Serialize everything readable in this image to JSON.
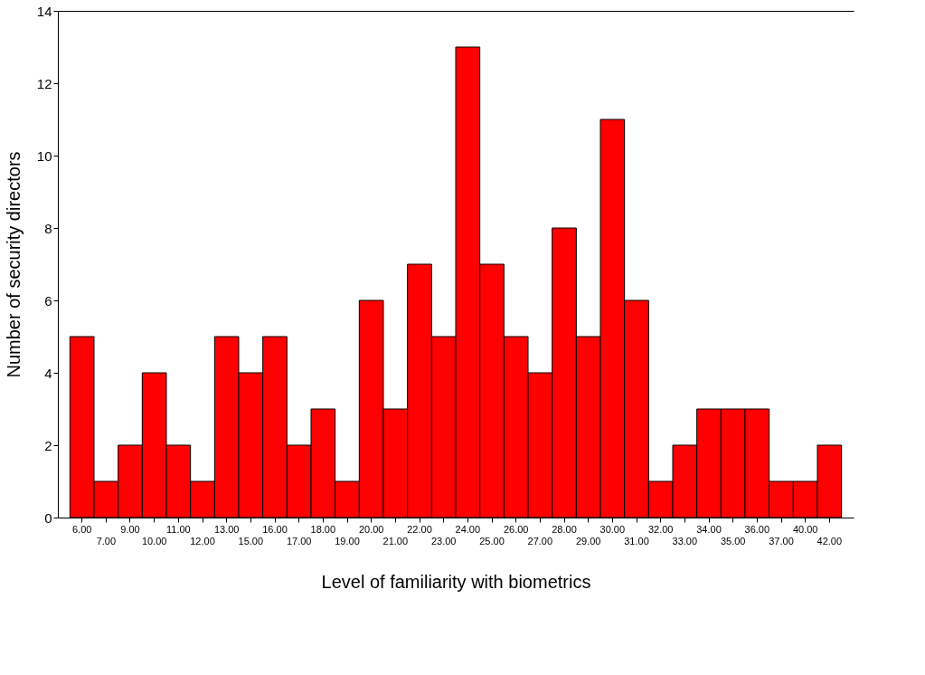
{
  "chart_data": {
    "type": "bar",
    "xlabel": "Level of familiarity with biometrics",
    "ylabel": "Number of security directors",
    "categories": [
      "6.00",
      "7.00",
      "9.00",
      "10.00",
      "11.00",
      "12.00",
      "13.00",
      "15.00",
      "16.00",
      "17.00",
      "18.00",
      "19.00",
      "20.00",
      "21.00",
      "22.00",
      "23.00",
      "24.00",
      "25.00",
      "26.00",
      "27.00",
      "28.00",
      "29.00",
      "30.00",
      "31.00",
      "32.00",
      "33.00",
      "34.00",
      "35.00",
      "36.00",
      "37.00",
      "40.00",
      "42.00"
    ],
    "values": [
      5,
      1,
      2,
      4,
      2,
      1,
      5,
      4,
      5,
      2,
      3,
      1,
      6,
      3,
      7,
      5,
      13,
      7,
      5,
      4,
      8,
      5,
      11,
      6,
      1,
      2,
      3,
      3,
      3,
      1,
      1,
      2
    ],
    "color": "#ff0000",
    "ylim": [
      0,
      14
    ],
    "yticks": [
      0,
      2,
      4,
      6,
      8,
      10,
      12,
      14
    ],
    "grid": false
  }
}
